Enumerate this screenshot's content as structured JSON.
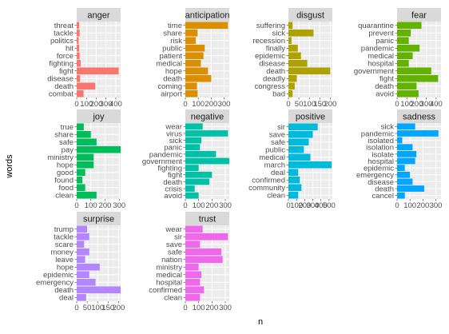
{
  "chart_data": {
    "type": "bar",
    "orientation": "horizontal",
    "xlabel": "n",
    "ylabel": "words",
    "grid": true,
    "facets": [
      {
        "name": "anger",
        "color": "#F8766D",
        "xlim": [
          0,
          450
        ],
        "ticks": [
          0,
          100,
          200,
          300,
          400
        ],
        "tick_labels": [
          "0",
          "100",
          "200",
          "300",
          "400"
        ],
        "categories": [
          "threat",
          "tackle",
          "politics",
          "hit",
          "force",
          "fighting",
          "fight",
          "disease",
          "death",
          "combat"
        ],
        "values": [
          25,
          30,
          20,
          25,
          30,
          40,
          430,
          35,
          190,
          70
        ]
      },
      {
        "name": "anticipation",
        "color": "#DB8E00",
        "xlim": [
          0,
          340
        ],
        "ticks": [
          0,
          100,
          200,
          300
        ],
        "tick_labels": [
          "0",
          "100",
          "200",
          "300"
        ],
        "categories": [
          "time",
          "share",
          "risk",
          "public",
          "patient",
          "medical",
          "hope",
          "death",
          "coming",
          "airport"
        ],
        "values": [
          330,
          95,
          80,
          150,
          140,
          120,
          175,
          200,
          90,
          95
        ]
      },
      {
        "name": "disgust",
        "color": "#AEA200",
        "xlim": [
          0,
          210
        ],
        "ticks": [
          0,
          50,
          100,
          150,
          200
        ],
        "tick_labels": [
          "0",
          "50",
          "100",
          "150",
          "200"
        ],
        "categories": [
          "suffering",
          "sick",
          "recession",
          "finally",
          "epidemic",
          "disease",
          "death",
          "deadly",
          "congress",
          "bad"
        ],
        "values": [
          20,
          120,
          15,
          45,
          60,
          90,
          200,
          40,
          30,
          20
        ]
      },
      {
        "name": "fear",
        "color": "#64B200",
        "xlim": [
          0,
          450
        ],
        "ticks": [
          0,
          100,
          200,
          300,
          400
        ],
        "tick_labels": [
          "0",
          "100",
          "200",
          "300",
          "400"
        ],
        "categories": [
          "quarantine",
          "prevent",
          "panic",
          "pandemic",
          "medical",
          "hospital",
          "government",
          "fight",
          "death",
          "avoid"
        ],
        "values": [
          250,
          140,
          120,
          230,
          160,
          120,
          350,
          420,
          200,
          220
        ]
      },
      {
        "name": "joy",
        "color": "#00BD5C",
        "xlim": [
          0,
          310
        ],
        "ticks": [
          0,
          100,
          200,
          300
        ],
        "tick_labels": [
          "0",
          "100",
          "200",
          "300"
        ],
        "categories": [
          "true",
          "share",
          "safe",
          "pay",
          "ministry",
          "hope",
          "good",
          "found",
          "food",
          "clean"
        ],
        "values": [
          50,
          100,
          140,
          310,
          120,
          120,
          60,
          40,
          60,
          140
        ]
      },
      {
        "name": "negative",
        "color": "#00C1A7",
        "xlim": [
          0,
          330
        ],
        "ticks": [
          0,
          100,
          200,
          300
        ],
        "tick_labels": [
          "0",
          "100",
          "200",
          "300"
        ],
        "categories": [
          "wear",
          "virus",
          "sick",
          "panic",
          "pandemic",
          "government",
          "fighting",
          "fight",
          "death",
          "crisis",
          "avoid"
        ],
        "values": [
          130,
          320,
          120,
          110,
          230,
          330,
          100,
          200,
          180,
          70,
          100
        ]
      },
      {
        "name": "positive",
        "color": "#00BADE",
        "xlim": [
          0,
          540
        ],
        "ticks": [
          0,
          100,
          200,
          300,
          400,
          500
        ],
        "tick_labels": [
          "0",
          "100",
          "200",
          "300",
          "400",
          "500"
        ],
        "categories": [
          "sir",
          "save",
          "safe",
          "public",
          "medical",
          "march",
          "deal",
          "confirmed",
          "community",
          "clean"
        ],
        "values": [
          360,
          300,
          250,
          190,
          270,
          530,
          120,
          140,
          160,
          120
        ]
      },
      {
        "name": "sadness",
        "color": "#00A6FF",
        "xlim": [
          0,
          340
        ],
        "ticks": [
          0,
          100,
          200,
          300
        ],
        "tick_labels": [
          "0",
          "100",
          "200",
          "300"
        ],
        "categories": [
          "sick",
          "pandemic",
          "isolated",
          "isolation",
          "isolate",
          "hospital",
          "epidemic",
          "emergency",
          "disease",
          "death",
          "cancel"
        ],
        "values": [
          140,
          320,
          40,
          120,
          150,
          140,
          60,
          100,
          120,
          210,
          60
        ]
      },
      {
        "name": "surprise",
        "color": "#B385FF",
        "xlim": [
          0,
          210
        ],
        "ticks": [
          0,
          50,
          100,
          150,
          200
        ],
        "tick_labels": [
          "0",
          "50",
          "100",
          "150",
          "200"
        ],
        "categories": [
          "trump",
          "tackle",
          "scare",
          "money",
          "leave",
          "hope",
          "epidemic",
          "emergency",
          "death",
          "deal"
        ],
        "values": [
          50,
          60,
          35,
          60,
          40,
          110,
          60,
          90,
          210,
          45
        ]
      },
      {
        "name": "trust",
        "color": "#EF67EB",
        "xlim": [
          0,
          330
        ],
        "ticks": [
          0,
          100,
          200,
          300
        ],
        "tick_labels": [
          "0",
          "100",
          "200",
          "300"
        ],
        "categories": [
          "wear",
          "sir",
          "save",
          "safe",
          "nation",
          "ministry",
          "medical",
          "hospital",
          "confirmed",
          "clean"
        ],
        "values": [
          130,
          320,
          110,
          270,
          280,
          100,
          120,
          110,
          140,
          110
        ]
      }
    ]
  }
}
